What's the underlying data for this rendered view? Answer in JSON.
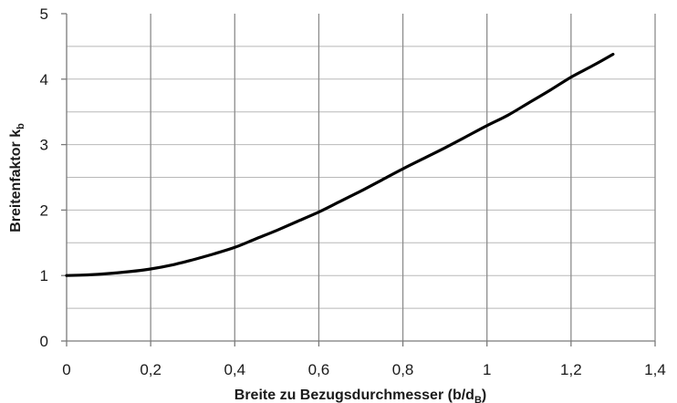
{
  "chart_data": {
    "type": "line",
    "xlabel": "Breite zu Bezugsdurchmesser (b/d",
    "xlabel_sub": "B",
    "xlabel_end": ")",
    "ylabel": "Breitenfaktor k",
    "ylabel_sub": "b",
    "xlim": [
      0,
      1.4
    ],
    "ylim": [
      0,
      5
    ],
    "x_ticks": [
      0,
      0.2,
      0.4,
      0.6,
      0.8,
      1,
      1.2,
      1.4
    ],
    "x_tick_labels": [
      "0",
      "0,2",
      "0,4",
      "0,6",
      "0,8",
      "1",
      "1,2",
      "1,4"
    ],
    "y_ticks": [
      0,
      1,
      2,
      3,
      4,
      5
    ],
    "y_tick_labels": [
      "0",
      "1",
      "2",
      "3",
      "4",
      "5"
    ],
    "grid": {
      "vertical": true,
      "horizontal": true,
      "horizontal_minor_step": 0.5
    },
    "series": [
      {
        "color": "#000000",
        "x": [
          0,
          0.05,
          0.1,
          0.15,
          0.2,
          0.25,
          0.3,
          0.35,
          0.4,
          0.45,
          0.5,
          0.55,
          0.6,
          0.65,
          0.7,
          0.75,
          0.8,
          0.85,
          0.9,
          0.95,
          1.0,
          1.05,
          1.1,
          1.15,
          1.2,
          1.25,
          1.3
        ],
        "y": [
          1.0,
          1.01,
          1.03,
          1.06,
          1.1,
          1.16,
          1.24,
          1.33,
          1.43,
          1.56,
          1.69,
          1.83,
          1.97,
          2.13,
          2.29,
          2.46,
          2.63,
          2.79,
          2.95,
          3.12,
          3.29,
          3.45,
          3.64,
          3.83,
          4.03,
          4.2,
          4.38
        ]
      }
    ]
  }
}
